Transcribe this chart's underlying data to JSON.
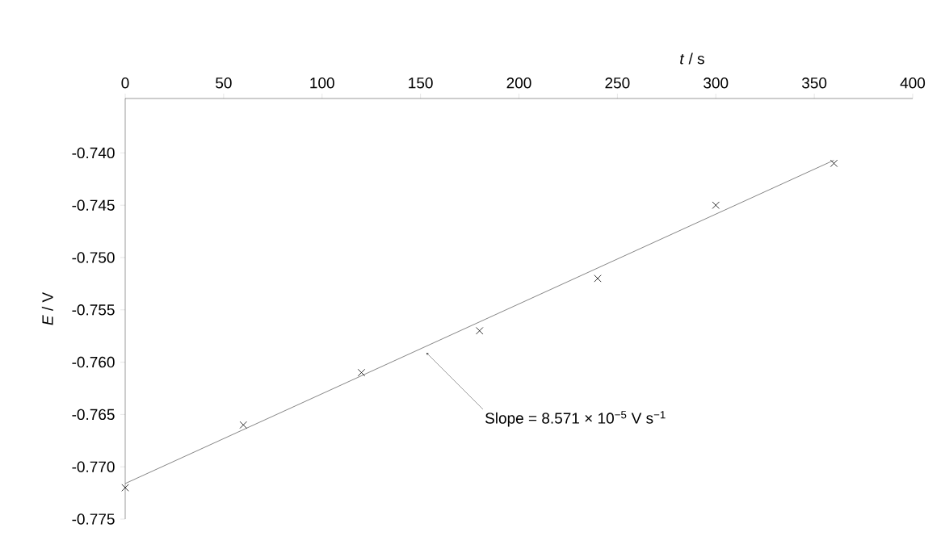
{
  "chart_data": {
    "type": "scatter",
    "xlabel": "*t* / s",
    "ylabel": "*E* / V",
    "xlim": [
      0,
      400
    ],
    "xticks": [
      0,
      50,
      100,
      150,
      200,
      250,
      300,
      350,
      400
    ],
    "ylim": [
      -0.775,
      -0.7348
    ],
    "yticks": [
      {
        "value": -0.775,
        "label": "-0.775"
      },
      {
        "value": -0.77,
        "label": "-0.770"
      },
      {
        "value": -0.765,
        "label": "-0.765"
      },
      {
        "value": -0.76,
        "label": "-0.760"
      },
      {
        "value": -0.755,
        "label": "-0.755"
      },
      {
        "value": -0.75,
        "label": "-0.750"
      },
      {
        "value": -0.745,
        "label": "-0.745"
      },
      {
        "value": -0.74,
        "label": "-0.740"
      }
    ],
    "grid": false,
    "series": [
      {
        "marker": "cross",
        "color": "#000000",
        "x": [
          0,
          60,
          120,
          180,
          240,
          300,
          360
        ],
        "values": [
          -0.772,
          -0.766,
          -0.761,
          -0.757,
          -0.752,
          -0.745,
          -0.741
        ]
      },
      {
        "type": "line",
        "color": "#666666",
        "x": [
          0,
          360
        ],
        "values": [
          -0.7716,
          -0.7407
        ]
      }
    ],
    "annotations": [
      {
        "text": "Slope =  8.571 × 10$^{−5}$ V s$^{−1}$",
        "x": 153,
        "y": -0.7591
      }
    ]
  }
}
